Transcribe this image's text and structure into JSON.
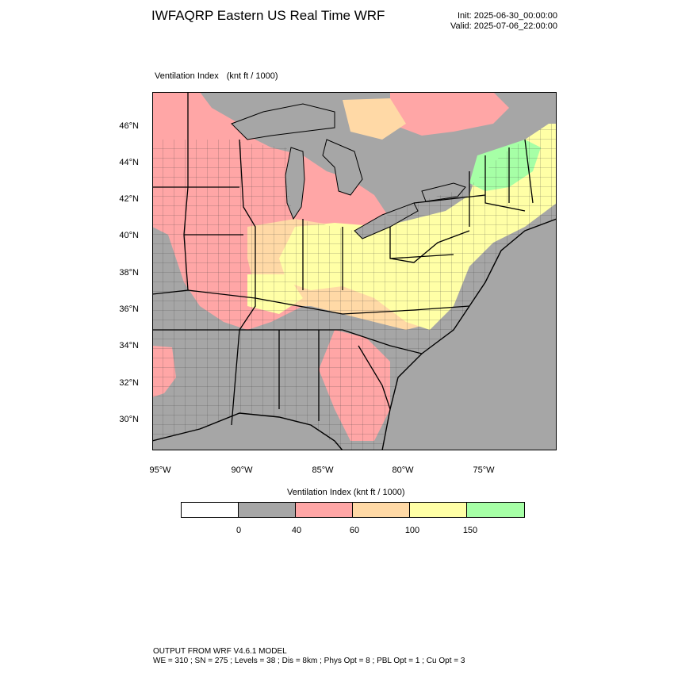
{
  "header": {
    "title": "IWFAQRP Eastern US Real Time WRF",
    "init": "Init: 2025-06-30_00:00:00",
    "valid": "Valid: 2025-07-06_22:00:00"
  },
  "map": {
    "field_name": "Ventilation Index",
    "field_units": "(knt ft / 1000)",
    "lat_labels": [
      "46°N",
      "44°N",
      "42°N",
      "40°N",
      "38°N",
      "36°N",
      "34°N",
      "32°N",
      "30°N"
    ],
    "lon_labels": [
      "95°W",
      "90°W",
      "85°W",
      "80°W",
      "75°W"
    ],
    "colors": {
      "background": "#a6a6a6",
      "pink": "#ffa6a6",
      "orange": "#ffd9a6",
      "yellow": "#ffffa6",
      "green": "#a6ffa6",
      "border": "#000000"
    }
  },
  "colorbar": {
    "title": "Ventilation Index  (knt ft / 1000)",
    "colors": [
      "#ffffff",
      "#a6a6a6",
      "#ffa6a6",
      "#ffd9a6",
      "#ffffa6",
      "#a6ffa6"
    ],
    "ticks": [
      "0",
      "40",
      "60",
      "100",
      "150"
    ]
  },
  "footer": {
    "line1": "OUTPUT FROM WRF V4.6.1 MODEL",
    "line2": "WE = 310 ; SN = 275 ; Levels = 38 ; Dis = 8km ; Phys Opt = 8 ; PBL Opt = 1 ; Cu Opt = 3"
  }
}
